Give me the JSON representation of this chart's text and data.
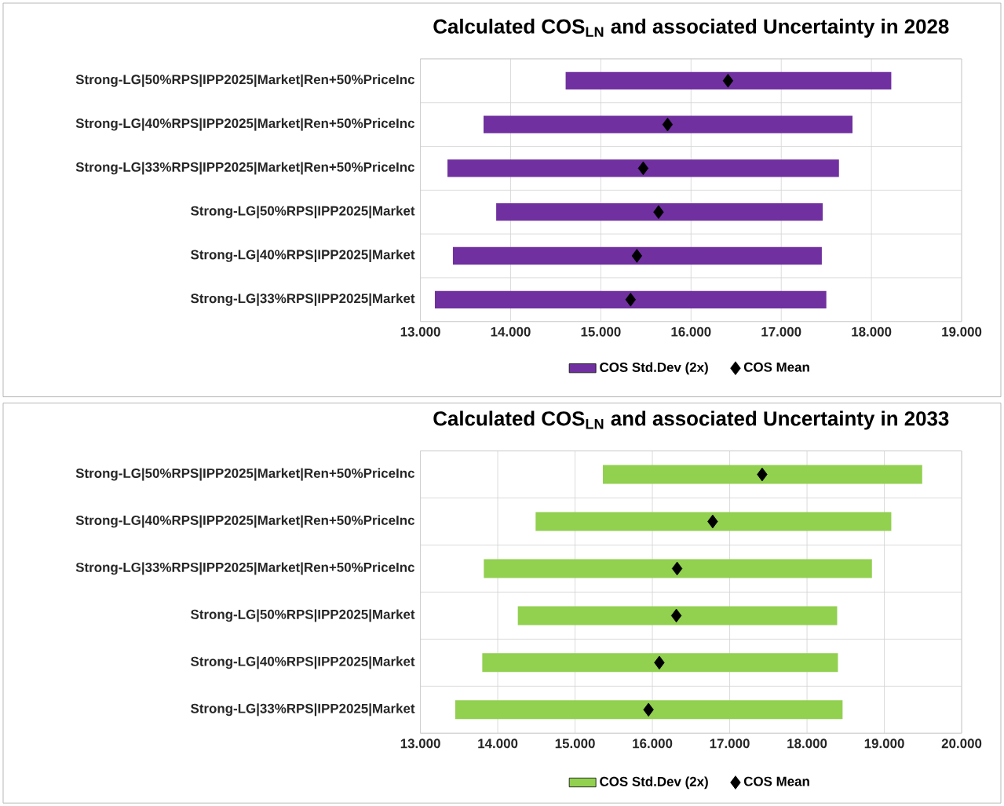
{
  "chart_data": [
    {
      "type": "bar",
      "orientation": "horizontal",
      "title": "Calculated COS$_{LN}$ and associated Uncertainty in 2028",
      "categories": [
        "Strong-LG|50%RPS|IPP2025|Market|Ren+50%PriceInc",
        "Strong-LG|40%RPS|IPP2025|Market|Ren+50%PriceInc",
        "Strong-LG|33%RPS|IPP2025|Market|Ren+50%PriceInc",
        "Strong-LG|50%RPS|IPP2025|Market",
        "Strong-LG|40%RPS|IPP2025|Market",
        "Strong-LG|33%RPS|IPP2025|Market"
      ],
      "series": [
        {
          "name": "COS Std.Dev (2x)",
          "color": "#7030a0",
          "base": [
            14.61,
            13.7,
            13.3,
            13.84,
            13.36,
            13.16
          ],
          "values": [
            3.61,
            4.09,
            4.34,
            3.62,
            4.09,
            4.34
          ]
        },
        {
          "name": "COS Mean",
          "type": "scatter",
          "marker": "diamond",
          "color": "#000000",
          "values": [
            16.41,
            15.74,
            15.47,
            15.64,
            15.4,
            15.33
          ]
        }
      ],
      "xlim": [
        13,
        19
      ],
      "xticks": [
        {
          "value": 13,
          "label": "13.000"
        },
        {
          "value": 14,
          "label": "14.000"
        },
        {
          "value": 15,
          "label": "15.000"
        },
        {
          "value": 16,
          "label": "16.000"
        },
        {
          "value": 17,
          "label": "17.000"
        },
        {
          "value": 18,
          "label": "18.000"
        },
        {
          "value": 19,
          "label": "19.000"
        }
      ],
      "grid": true,
      "legend": "bottom"
    },
    {
      "type": "bar",
      "orientation": "horizontal",
      "title": "Calculated COS$_{LN}$ and associated Uncertainty in 2033",
      "categories": [
        "Strong-LG|50%RPS|IPP2025|Market|Ren+50%PriceInc",
        "Strong-LG|40%RPS|IPP2025|Market|Ren+50%PriceInc",
        "Strong-LG|33%RPS|IPP2025|Market|Ren+50%PriceInc",
        "Strong-LG|50%RPS|IPP2025|Market",
        "Strong-LG|40%RPS|IPP2025|Market",
        "Strong-LG|33%RPS|IPP2025|Market"
      ],
      "series": [
        {
          "name": "COS Std.Dev (2x)",
          "color": "#92d050",
          "base": [
            15.36,
            14.49,
            13.82,
            14.26,
            13.8,
            13.45
          ],
          "values": [
            4.13,
            4.6,
            5.02,
            4.13,
            4.6,
            5.01
          ]
        },
        {
          "name": "COS Mean",
          "type": "scatter",
          "marker": "diamond",
          "color": "#000000",
          "values": [
            17.42,
            16.78,
            16.32,
            16.31,
            16.09,
            15.95
          ]
        }
      ],
      "xlim": [
        13,
        20
      ],
      "xticks": [
        {
          "value": 13,
          "label": "13.000"
        },
        {
          "value": 14,
          "label": "14.000"
        },
        {
          "value": 15,
          "label": "15.000"
        },
        {
          "value": 16,
          "label": "16.000"
        },
        {
          "value": 17,
          "label": "17.000"
        },
        {
          "value": 18,
          "label": "18.000"
        },
        {
          "value": 19,
          "label": "19.000"
        },
        {
          "value": 20,
          "label": "20.000"
        }
      ],
      "grid": true,
      "legend": "bottom"
    }
  ]
}
